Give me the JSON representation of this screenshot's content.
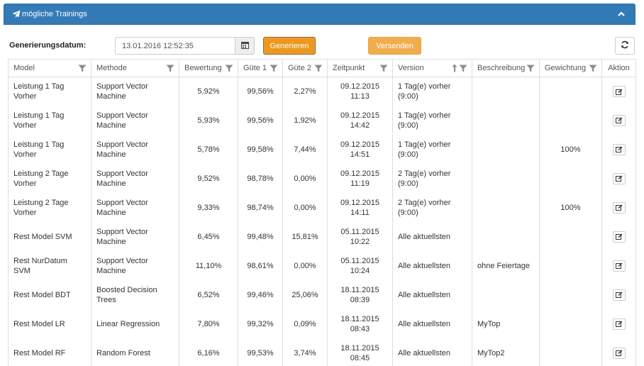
{
  "panel": {
    "title": "mögliche Trainings"
  },
  "toolbar": {
    "date_label": "Generierungsdatum:",
    "date_value": "13.01.2016 12:52:35",
    "generate_label": "Generieren",
    "send_label": "Versenden"
  },
  "columns": [
    "Model",
    "Methode",
    "Bewertung",
    "Güte 1",
    "Güte 2",
    "Zeitpunkt",
    "Version",
    "Beschreibung",
    "Gewichtung",
    "Aktion"
  ],
  "rows": [
    {
      "model": "Leistung 1 Tag Vorher",
      "methode": "Support Vector Machine",
      "bewertung": "5,92%",
      "guete1": "99,56%",
      "guete2": "2,27%",
      "zeit1": "09.12.2015",
      "zeit2": "11:13",
      "version": "1 Tag(e) vorher (9:00)",
      "beschreibung": "",
      "gewichtung": ""
    },
    {
      "model": "Leistung 1 Tag Vorher",
      "methode": "Support Vector Machine",
      "bewertung": "5,93%",
      "guete1": "99,56%",
      "guete2": "1,92%",
      "zeit1": "09.12.2015",
      "zeit2": "14:42",
      "version": "1 Tag(e) vorher (9:00)",
      "beschreibung": "",
      "gewichtung": ""
    },
    {
      "model": "Leistung 1 Tag Vorher",
      "methode": "Support Vector Machine",
      "bewertung": "5,78%",
      "guete1": "99,58%",
      "guete2": "7,44%",
      "zeit1": "09.12.2015",
      "zeit2": "14:51",
      "version": "1 Tag(e) vorher (9:00)",
      "beschreibung": "",
      "gewichtung": "100%"
    },
    {
      "model": "Leistung 2 Tage Vorher",
      "methode": "Support Vector Machine",
      "bewertung": "9,52%",
      "guete1": "98,78%",
      "guete2": "0,00%",
      "zeit1": "09.12.2015",
      "zeit2": "11:19",
      "version": "2 Tag(e) vorher (9:00)",
      "beschreibung": "",
      "gewichtung": ""
    },
    {
      "model": "Leistung 2 Tage Vorher",
      "methode": "Support Vector Machine",
      "bewertung": "9,33%",
      "guete1": "98,74%",
      "guete2": "0,00%",
      "zeit1": "09.12.2015",
      "zeit2": "14:11",
      "version": "2 Tag(e) vorher (9:00)",
      "beschreibung": "",
      "gewichtung": "100%"
    },
    {
      "model": "Rest Model SVM",
      "methode": "Support Vector Machine",
      "bewertung": "6,45%",
      "guete1": "99,48%",
      "guete2": "15,81%",
      "zeit1": "05.11.2015",
      "zeit2": "10:22",
      "version": "Alle aktuellsten",
      "beschreibung": "",
      "gewichtung": ""
    },
    {
      "model": "Rest NurDatum SVM",
      "methode": "Support Vector Machine",
      "bewertung": "11,10%",
      "guete1": "98,61%",
      "guete2": "0,00%",
      "zeit1": "05.11.2015",
      "zeit2": "10:24",
      "version": "Alle aktuellsten",
      "beschreibung": "ohne Feiertage",
      "gewichtung": ""
    },
    {
      "model": "Rest Model BDT",
      "methode": "Boosted Decision Trees",
      "bewertung": "6,52%",
      "guete1": "99,46%",
      "guete2": "25,06%",
      "zeit1": "18.11.2015",
      "zeit2": "08:39",
      "version": "Alle aktuellsten",
      "beschreibung": "",
      "gewichtung": ""
    },
    {
      "model": "Rest Model LR",
      "methode": "Linear Regression",
      "bewertung": "7,80%",
      "guete1": "99,32%",
      "guete2": "0,09%",
      "zeit1": "18.11.2015",
      "zeit2": "08:43",
      "version": "Alle aktuellsten",
      "beschreibung": "MyTop",
      "gewichtung": ""
    },
    {
      "model": "Rest Model RF",
      "methode": "Random Forest",
      "bewertung": "6,16%",
      "guete1": "99,53%",
      "guete2": "3,74%",
      "zeit1": "18.11.2015",
      "zeit2": "08:45",
      "version": "Alle aktuellsten",
      "beschreibung": "MyTop2",
      "gewichtung": ""
    }
  ],
  "icons": {
    "header": "paper-plane-icon",
    "collapse": "chevron-up-icon",
    "calendar": "calendar-icon",
    "refresh": "refresh-icon",
    "filter": "filter-icon",
    "sort": "sort-up-icon",
    "edit": "edit-icon"
  },
  "colors": {
    "primary": "#337ab7",
    "warning": "#f0ad4e"
  }
}
